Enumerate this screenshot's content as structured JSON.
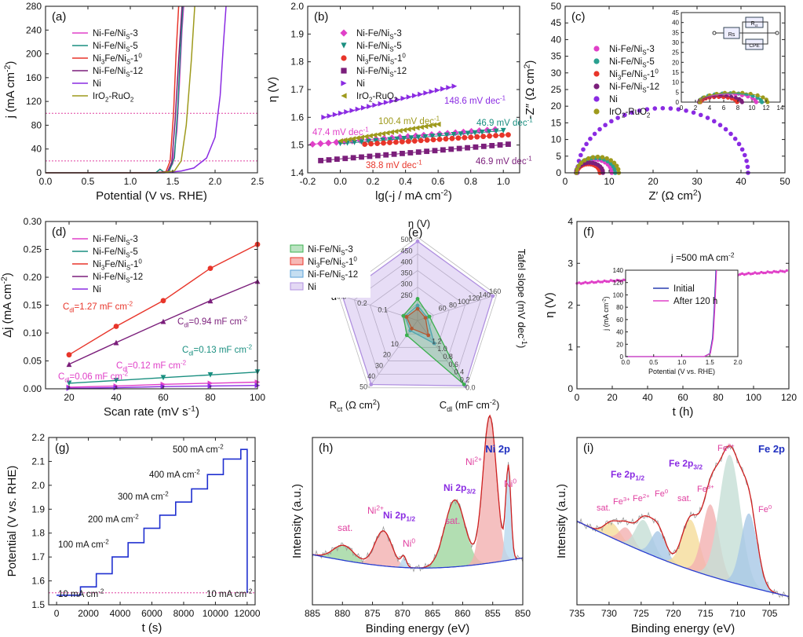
{
  "chart_data": [
    {
      "panel": "(a)",
      "type": "line",
      "xlabel": "Potential (V vs. RHE)",
      "ylabel": "j (mA cm-2)",
      "xlim": [
        0.0,
        2.5
      ],
      "ylim": [
        0,
        280
      ],
      "xticks": [
        0.0,
        0.5,
        1.0,
        1.5,
        2.0,
        2.5
      ],
      "yticks": [
        0,
        40,
        80,
        120,
        160,
        200,
        240,
        280
      ],
      "reference_lines": [
        100,
        20
      ],
      "legend": "top-left",
      "series": [
        {
          "name": "Ni-Fe/NiS-3",
          "color": "#e040c8",
          "x": [
            0.0,
            1.3,
            1.44,
            1.5,
            1.55,
            1.58,
            1.61,
            1.63
          ],
          "y": [
            0,
            0,
            2,
            15,
            70,
            150,
            240,
            280
          ]
        },
        {
          "name": "Ni-Fe/NiS-5",
          "color": "#1a8f80",
          "x": [
            0.0,
            1.3,
            1.35,
            1.4,
            1.46,
            1.52,
            1.56,
            1.6,
            1.62
          ],
          "y": [
            0,
            0,
            6,
            1,
            3,
            25,
            110,
            230,
            280
          ]
        },
        {
          "name": "Ni3Fe/NiS-10",
          "color": "#e8352a",
          "x": [
            0.0,
            1.3,
            1.42,
            1.47,
            1.51,
            1.54,
            1.57
          ],
          "y": [
            0,
            0,
            2,
            20,
            100,
            200,
            280
          ]
        },
        {
          "name": "Ni-Fe/NiS-12",
          "color": "#7b1f7b",
          "x": [
            0.0,
            1.3,
            1.44,
            1.49,
            1.53,
            1.57,
            1.61
          ],
          "y": [
            0,
            0,
            2,
            18,
            90,
            190,
            280
          ]
        },
        {
          "name": "Ni",
          "color": "#8a2be2",
          "x": [
            0.0,
            1.4,
            1.6,
            1.75,
            1.9,
            2.0,
            2.06,
            2.1,
            2.13
          ],
          "y": [
            0,
            0,
            3,
            8,
            25,
            60,
            130,
            220,
            280
          ]
        },
        {
          "name": "IrO2-RuO2",
          "color": "#9e9a1c",
          "x": [
            0.0,
            1.35,
            1.52,
            1.6,
            1.66,
            1.72,
            1.76
          ],
          "y": [
            0,
            0,
            3,
            20,
            80,
            190,
            280
          ]
        }
      ]
    },
    {
      "panel": "(b)",
      "type": "scatter",
      "xlabel": "lg(-j / mA cm-2)",
      "ylabel": "η (V)",
      "xlim": [
        -0.2,
        1.1
      ],
      "ylim": [
        1.4,
        2.0
      ],
      "xticks": [
        -0.2,
        0.0,
        0.2,
        0.4,
        0.6,
        0.8,
        1.0
      ],
      "yticks": [
        1.4,
        1.5,
        1.6,
        1.7,
        1.8,
        1.9,
        2.0
      ],
      "legend": "top-left",
      "annotations": [
        "47.4 mV dec-1",
        "100.4 mV dec-1",
        "148.6 mV dec-1",
        "46.9 mV dec-1",
        "38.8 mV dec-1",
        "46.9 mV dec-1"
      ],
      "series": [
        {
          "name": "Ni-Fe/NiS-3",
          "color": "#e040c8",
          "marker": "diamond",
          "x_start": -0.17,
          "x_end": 0.95,
          "y_start": 1.503,
          "y_end": 1.556
        },
        {
          "name": "Ni-Fe/NiS-5",
          "color": "#1a8f80",
          "marker": "triangle-down",
          "x_start": 0.0,
          "x_end": 1.0,
          "y_start": 1.505,
          "y_end": 1.552
        },
        {
          "name": "Ni3Fe/NiS-10",
          "color": "#e8352a",
          "marker": "circle",
          "x_start": 0.15,
          "x_end": 1.03,
          "y_start": 1.503,
          "y_end": 1.537
        },
        {
          "name": "Ni-Fe/NiS-12",
          "color": "#7b1f7b",
          "marker": "square",
          "x_start": -0.12,
          "x_end": 1.03,
          "y_start": 1.444,
          "y_end": 1.503
        },
        {
          "name": "Ni",
          "color": "#8a2be2",
          "marker": "triangle-right",
          "x_start": -0.1,
          "x_end": 0.7,
          "y_start": 1.6,
          "y_end": 1.712
        },
        {
          "name": "IrO2-RuO2",
          "color": "#9e9a1c",
          "marker": "triangle-left",
          "x_start": 0.0,
          "x_end": 0.6,
          "y_start": 1.515,
          "y_end": 1.575
        }
      ]
    },
    {
      "panel": "(c)",
      "type": "scatter",
      "xlabel": "Z′ (Ω cm2)",
      "ylabel": "-Z″ (Ω cm2)",
      "xlim": [
        0,
        50
      ],
      "ylim": [
        0,
        50
      ],
      "xticks": [
        0,
        10,
        20,
        30,
        40,
        50
      ],
      "yticks": [
        0,
        5,
        10,
        15,
        20,
        25,
        30,
        35,
        40,
        45,
        50
      ],
      "legend": "top-left",
      "inset": {
        "xlim": [
          0,
          14
        ],
        "ylim": [
          0,
          45
        ],
        "xticks": [
          0,
          2,
          4,
          6,
          8,
          10,
          12,
          14
        ],
        "yticks": [
          0,
          5,
          10,
          15,
          20,
          25,
          30,
          35,
          40,
          45
        ],
        "circuit_labels": [
          "Rs",
          "Rct",
          "CPE"
        ]
      },
      "series": [
        {
          "name": "Ni-Fe/NiS-3",
          "color": "#e040c8",
          "r_s": 2.6,
          "r_ct": 8.0
        },
        {
          "name": "Ni-Fe/NiS-5",
          "color": "#2aa090",
          "r_s": 2.5,
          "r_ct": 8.9
        },
        {
          "name": "Ni3Fe/NiS-10",
          "color": "#e8352a",
          "r_s": 2.7,
          "r_ct": 5.2
        },
        {
          "name": "Ni-Fe/NiS-12",
          "color": "#7b1f7b",
          "r_s": 2.5,
          "r_ct": 6.1
        },
        {
          "name": "Ni",
          "color": "#8a2be2",
          "r_s": 2.8,
          "r_ct": 38.8
        },
        {
          "name": "IrO2-RuO2",
          "color": "#9e9a1c",
          "r_s": 2.6,
          "r_ct": 9.6
        }
      ]
    },
    {
      "panel": "(d)",
      "type": "scatter",
      "xlabel": "Scan rate (mV s-1)",
      "ylabel": "Δj (mA cm-2)",
      "xlim": [
        10,
        100
      ],
      "ylim": [
        0.0,
        0.3
      ],
      "xticks": [
        20,
        40,
        60,
        80,
        100
      ],
      "yticks": [
        0.0,
        0.05,
        0.1,
        0.15,
        0.2,
        0.25,
        0.3
      ],
      "legend": "top-left",
      "x": [
        20,
        40,
        60,
        80,
        100
      ],
      "annotations": [
        "Cdl=1.27 mF cm-2",
        "Cdl=0.94 mF cm-2",
        "Cdl=0.13 mF cm-2",
        "Cdl=0.12 mF cm-2",
        "Cdl=0.06 mF cm-2"
      ],
      "series": [
        {
          "name": "Ni-Fe/NiS-3",
          "color": "#e040c8",
          "values": [
            0.003,
            0.005,
            0.008,
            0.01,
            0.012
          ]
        },
        {
          "name": "Ni-Fe/NiS-5",
          "color": "#1a8f80",
          "values": [
            0.01,
            0.015,
            0.02,
            0.025,
            0.03
          ]
        },
        {
          "name": "Ni3Fe/NiS-10",
          "color": "#e8352a",
          "values": [
            0.061,
            0.112,
            0.158,
            0.216,
            0.259
          ]
        },
        {
          "name": "Ni-Fe/NiS-12",
          "color": "#7b1f7b",
          "values": [
            0.044,
            0.083,
            0.121,
            0.158,
            0.193
          ]
        },
        {
          "name": "Ni",
          "color": "#8a2be2",
          "values": [
            0.001,
            0.002,
            0.004,
            0.005,
            0.006
          ]
        }
      ]
    },
    {
      "panel": "(e)",
      "type": "radar",
      "axes": [
        "η (V)",
        "Tafel slope (mV dec-1)",
        "Cdl (mF cm-2)",
        "Rct (Ω cm2)",
        "α"
      ],
      "axis_ticks": [
        [
          "250",
          "300",
          "350",
          "400",
          "450",
          "500"
        ],
        [
          "60",
          "80",
          "100",
          "120",
          "140",
          "160"
        ],
        [
          "1.2",
          "1.0",
          "0.8",
          "0.6",
          "0.4",
          "0.2",
          "0.0"
        ],
        [
          "10",
          "20",
          "30",
          "40",
          "50"
        ],
        [
          "0.1",
          "0.2",
          "0.3"
        ]
      ],
      "legend": "top-left",
      "series": [
        {
          "name": "Ni-Fe/NiS-3",
          "color": "#3cb050",
          "values": [
            0.26,
            0.15,
            0.95,
            0.22,
            0.18
          ]
        },
        {
          "name": "Ni3Fe/NiS-10",
          "color": "#e8352a",
          "values": [
            0.14,
            0.1,
            0.22,
            0.12,
            0.14
          ]
        },
        {
          "name": "Ni-Fe/NiS-12",
          "color": "#5aa0d8",
          "values": [
            0.18,
            0.12,
            0.34,
            0.15,
            0.16
          ]
        },
        {
          "name": "Ni",
          "color": "#b090e0",
          "values": [
            0.95,
            0.95,
            0.97,
            0.95,
            0.95
          ]
        }
      ]
    },
    {
      "panel": "(f)",
      "type": "line",
      "xlabel": "t (h)",
      "ylabel": "η (V)",
      "xlim": [
        0,
        120
      ],
      "ylim": [
        0,
        4
      ],
      "xticks": [
        0,
        20,
        40,
        60,
        80,
        100,
        120
      ],
      "yticks": [
        0,
        1,
        2,
        3,
        4
      ],
      "annotation": "j =500 mA cm-2",
      "series": [
        {
          "name": "",
          "color": "#e040c8",
          "x": [
            0,
            10,
            20,
            40,
            60,
            80,
            100,
            120
          ],
          "y": [
            2.52,
            2.55,
            2.58,
            2.62,
            2.66,
            2.7,
            2.76,
            2.82
          ]
        }
      ],
      "inset": {
        "xlabel": "Potential (V vs. RHE)",
        "ylabel": "j (mA cm-2)",
        "xlim": [
          0.0,
          2.0
        ],
        "ylim": [
          0,
          140
        ],
        "xticks": [
          0.0,
          0.5,
          1.0,
          1.5,
          2.0
        ],
        "yticks": [
          0,
          20,
          40,
          60,
          80,
          100,
          120,
          140
        ],
        "series": [
          {
            "name": "Initial",
            "color": "#2a3fb0",
            "x": [
              0.0,
              1.4,
              1.5,
              1.55,
              1.58,
              1.61
            ],
            "y": [
              0,
              0,
              5,
              30,
              80,
              140
            ]
          },
          {
            "name": "After 120 h",
            "color": "#e040c8",
            "x": [
              0.0,
              1.4,
              1.51,
              1.56,
              1.59,
              1.62
            ],
            "y": [
              0,
              0,
              5,
              30,
              80,
              140
            ]
          }
        ]
      }
    },
    {
      "panel": "(g)",
      "type": "line",
      "xlabel": "t (s)",
      "ylabel": "Potential (V vs. RHE)",
      "xlim": [
        -500,
        12500
      ],
      "ylim": [
        1.5,
        2.2
      ],
      "xticks": [
        0,
        2000,
        4000,
        6000,
        8000,
        10000,
        12000
      ],
      "yticks": [
        1.5,
        1.6,
        1.7,
        1.8,
        1.9,
        2.0,
        2.1,
        2.2
      ],
      "annotations": [
        "500 mA cm-2",
        "400 mA cm-2",
        "300 mA cm-2",
        "200 mA cm-2",
        "100 mA cm-2",
        "10 mA cm-2",
        "10 mA cm-2"
      ],
      "reference_line": 1.55,
      "series": [
        {
          "name": "",
          "color": "#2030d0",
          "steps_t": [
            0,
            1500,
            2500,
            3500,
            4500,
            5500,
            6500,
            7500,
            8500,
            9500,
            10500,
            11600,
            12000
          ],
          "steps_v": [
            1.54,
            1.575,
            1.63,
            1.7,
            1.76,
            1.82,
            1.875,
            1.93,
            1.985,
            2.045,
            2.11,
            2.15,
            1.55
          ]
        }
      ]
    },
    {
      "panel": "(h)",
      "type": "line",
      "title": "Ni 2p",
      "xlabel": "Binding energy (eV)",
      "ylabel": "Intensity (a.u.)",
      "xlim": [
        885,
        850
      ],
      "xticks": [
        885,
        880,
        875,
        870,
        865,
        860,
        855,
        850
      ],
      "annotations": [
        "Ni 2p3/2",
        "Ni 2p1/2",
        "sat.",
        "Ni2+",
        "Ni0",
        "sat.",
        "Ni2+",
        "Ni0"
      ],
      "peaks": [
        {
          "label": "sat.",
          "center": 879.8,
          "color": "#9fd69f"
        },
        {
          "label": "Ni2+",
          "center": 873.2,
          "color": "#f2b0b0"
        },
        {
          "label": "Ni0",
          "center": 869.8,
          "color": "#b8d8ee"
        },
        {
          "label": "sat.",
          "center": 861.3,
          "color": "#9fd69f"
        },
        {
          "label": "Ni2+",
          "center": 855.5,
          "color": "#f2b0b0"
        },
        {
          "label": "Ni0",
          "center": 852.4,
          "color": "#b8d8ee"
        }
      ]
    },
    {
      "panel": "(i)",
      "type": "line",
      "title": "Fe 2p",
      "xlabel": "Binding energy (eV)",
      "ylabel": "Intensity (a.u.)",
      "xlim": [
        735,
        702
      ],
      "xticks": [
        735,
        730,
        725,
        720,
        715,
        710,
        705
      ],
      "annotations": [
        "Fe 2p1/2",
        "Fe 2p3/2",
        "sat.",
        "Fe3+",
        "Fe2+",
        "Fe0",
        "sat.",
        "Fe3+",
        "Fe2+",
        "Fe0"
      ],
      "peaks": [
        {
          "label": "sat.",
          "center": 729.5,
          "color": "#f5dc9a"
        },
        {
          "label": "Fe3+",
          "center": 727.3,
          "color": "#f2b0b0"
        },
        {
          "label": "Fe2+",
          "center": 724.6,
          "color": "#c6dfd6"
        },
        {
          "label": "Fe0",
          "center": 722.3,
          "color": "#a8c8e6"
        },
        {
          "label": "sat.",
          "center": 717.3,
          "color": "#f5dc9a"
        },
        {
          "label": "Fe3+",
          "center": 714.2,
          "color": "#f2b0b0"
        },
        {
          "label": "Fe2+",
          "center": 711.2,
          "color": "#c6dfd6"
        },
        {
          "label": "Fe0",
          "center": 708.2,
          "color": "#a8c8e6"
        }
      ]
    }
  ]
}
